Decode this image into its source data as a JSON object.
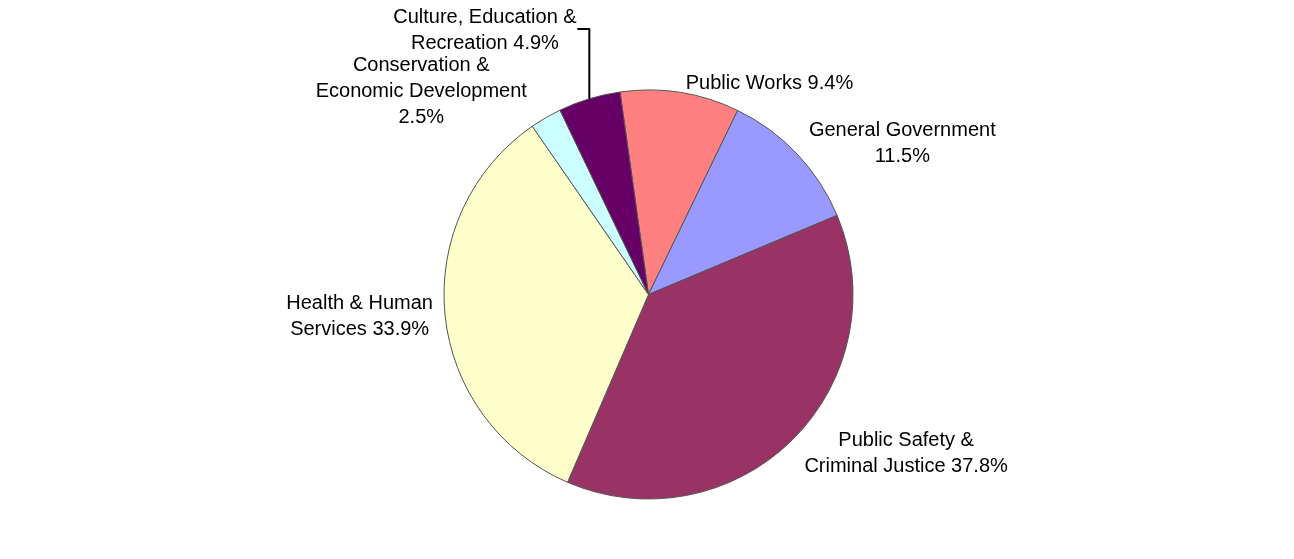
{
  "chart_data": {
    "type": "pie",
    "categories": [
      "Public Works",
      "General Government",
      "Public Safety & Criminal Justice",
      "Health & Human Services",
      "Conservation & Economic Development",
      "Culture, Education & Recreation"
    ],
    "values": [
      9.4,
      11.5,
      37.8,
      33.9,
      2.5,
      4.9
    ],
    "colors": [
      "#ff8080",
      "#9999ff",
      "#993366",
      "#ffffcc",
      "#ccffff",
      "#660066"
    ],
    "value_labels": [
      "9.4%",
      "11.5%",
      "37.8%",
      "33.9%",
      "2.5%",
      "4.9%"
    ],
    "legend": false
  }
}
